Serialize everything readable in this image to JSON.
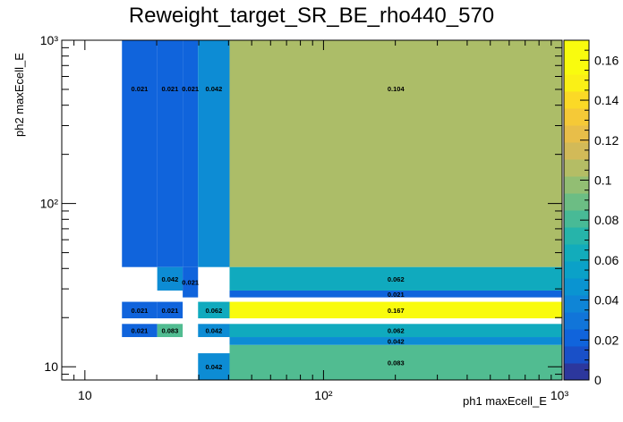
{
  "chart_data": {
    "type": "heatmap",
    "title": "Reweight_target_SR_BE_rho440_570",
    "xlabel": "ph1 maxEcell_E",
    "ylabel": "ph2 maxEcell_E",
    "x_scale": "log",
    "y_scale": "log",
    "xlim": [
      8,
      1000
    ],
    "ylim": [
      8.3,
      1000
    ],
    "x_major_ticks": [
      {
        "v": 10,
        "label": "10"
      },
      {
        "v": 100,
        "label": "10²"
      },
      {
        "v": 1000,
        "label": "10³"
      }
    ],
    "y_major_ticks": [
      {
        "v": 10,
        "label": "10"
      },
      {
        "v": 100,
        "label": "10²"
      },
      {
        "v": 1000,
        "label": "10³"
      }
    ],
    "colorbar": {
      "min": 0,
      "max": 0.17,
      "ticks": [
        0,
        0.02,
        0.04,
        0.06,
        0.08,
        0.1,
        0.12,
        0.14,
        0.16
      ],
      "tick_labels": [
        "0",
        "0.02",
        "0.04",
        "0.06",
        "0.08",
        "0.1",
        "0.12",
        "0.14",
        "0.16"
      ]
    },
    "cells": [
      {
        "x0": 14.3,
        "x1": 20.1,
        "y0": 40.8,
        "y1": 1000,
        "value": 0.021,
        "label": "0.021"
      },
      {
        "x0": 20.1,
        "x1": 25.7,
        "y0": 40.8,
        "y1": 1000,
        "value": 0.021,
        "label": "0.021"
      },
      {
        "x0": 25.7,
        "x1": 29.8,
        "y0": 40.8,
        "y1": 1000,
        "value": 0.021,
        "label": "0.021"
      },
      {
        "x0": 29.8,
        "x1": 40.4,
        "y0": 40.8,
        "y1": 1000,
        "value": 0.042,
        "label": "0.042"
      },
      {
        "x0": 40.4,
        "x1": 1000,
        "y0": 40.8,
        "y1": 1000,
        "value": 0.104,
        "label": "0.104"
      },
      {
        "x0": 20.1,
        "x1": 25.7,
        "y0": 29.3,
        "y1": 40.8,
        "value": 0.042,
        "label": "0.042"
      },
      {
        "x0": 25.7,
        "x1": 29.8,
        "y0": 26.6,
        "y1": 40.8,
        "value": 0.021,
        "label": "0.021"
      },
      {
        "x0": 40.4,
        "x1": 1000,
        "y0": 29.3,
        "y1": 40.8,
        "value": 0.062,
        "label": "0.062"
      },
      {
        "x0": 40.4,
        "x1": 1000,
        "y0": 26.6,
        "y1": 29.3,
        "value": 0.021,
        "label": "0.021"
      },
      {
        "x0": 14.3,
        "x1": 20.1,
        "y0": 19.8,
        "y1": 25.0,
        "value": 0.021,
        "label": "0.021"
      },
      {
        "x0": 20.1,
        "x1": 25.7,
        "y0": 19.8,
        "y1": 25.0,
        "value": 0.021,
        "label": "0.021"
      },
      {
        "x0": 29.8,
        "x1": 40.4,
        "y0": 19.8,
        "y1": 25.0,
        "value": 0.062,
        "label": "0.062"
      },
      {
        "x0": 40.4,
        "x1": 1000,
        "y0": 19.8,
        "y1": 25.0,
        "value": 0.167,
        "label": "0.167"
      },
      {
        "x0": 14.3,
        "x1": 20.1,
        "y0": 15.2,
        "y1": 18.3,
        "value": 0.021,
        "label": "0.021"
      },
      {
        "x0": 20.1,
        "x1": 25.7,
        "y0": 15.2,
        "y1": 18.3,
        "value": 0.083,
        "label": "0.083"
      },
      {
        "x0": 29.8,
        "x1": 40.4,
        "y0": 15.2,
        "y1": 18.3,
        "value": 0.042,
        "label": "0.042"
      },
      {
        "x0": 40.4,
        "x1": 1000,
        "y0": 15.2,
        "y1": 18.3,
        "value": 0.062,
        "label": "0.062"
      },
      {
        "x0": 40.4,
        "x1": 1000,
        "y0": 13.6,
        "y1": 15.2,
        "value": 0.042,
        "label": "0.042"
      },
      {
        "x0": 29.8,
        "x1": 40.4,
        "y0": 8.3,
        "y1": 12.1,
        "value": 0.042,
        "label": "0.042"
      },
      {
        "x0": 40.4,
        "x1": 1000,
        "y0": 8.3,
        "y1": 13.6,
        "value": 0.083,
        "label": "0.083"
      }
    ]
  }
}
